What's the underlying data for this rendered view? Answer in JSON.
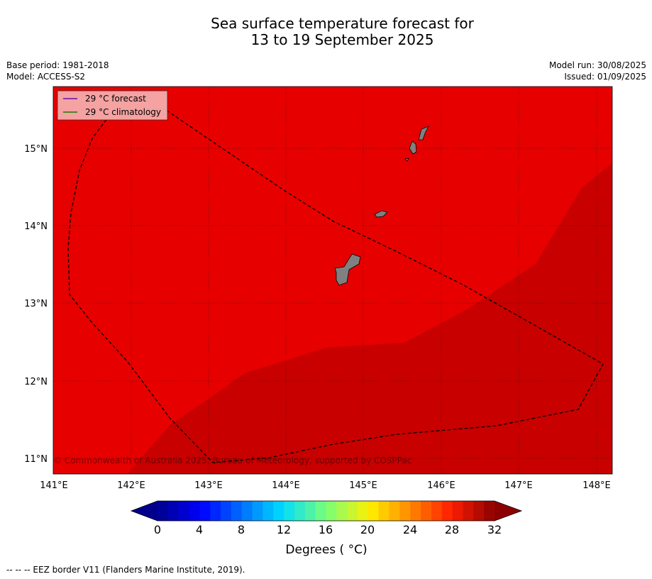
{
  "title": {
    "line1": "Sea surface temperature forecast for",
    "line2": "13 to 19 September 2025"
  },
  "meta_left": {
    "base_period": "Base period: 1981-2018",
    "model": "Model: ACCESS-S2"
  },
  "meta_right": {
    "model_run": "Model run: 30/08/2025",
    "issued": "Issued: 01/09/2025"
  },
  "map": {
    "lon_range": [
      141,
      148.2
    ],
    "lat_range": [
      10.8,
      15.8
    ],
    "lon_ticks": [
      "141°E",
      "142°E",
      "143°E",
      "144°E",
      "145°E",
      "146°E",
      "147°E",
      "148°E"
    ],
    "lat_ticks": [
      "11°N",
      "12°N",
      "13°N",
      "14°N",
      "15°N"
    ],
    "colors": {
      "warm_zone": "#e60000",
      "hot_zone": "#c80000",
      "land": "#808080"
    },
    "copyright": "© Commonwealth of Australia 2025, Bureau of Meteorology, supported by COSPPac"
  },
  "legend": {
    "items": [
      {
        "label": "29 °C  forecast",
        "color": "#6a0dad"
      },
      {
        "label": "29 °C  climatology",
        "color": "#1a7a00"
      }
    ]
  },
  "colorbar": {
    "ticks": [
      "0",
      "4",
      "8",
      "12",
      "16",
      "20",
      "24",
      "28",
      "32"
    ],
    "label": "Degrees ( °C)"
  },
  "footnote": "--  --  -- EEZ border V11 (Flanders Marine Institute, 2019)."
}
